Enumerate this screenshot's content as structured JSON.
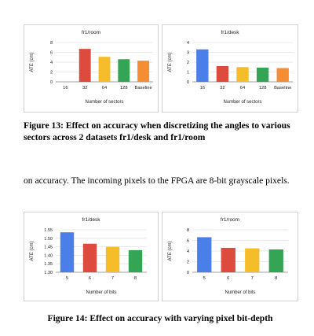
{
  "figure13": {
    "caption": "Figure 13: Effect on accuracy when discretizing the angles to various sectors across 2 datasets fr1/desk and fr1/room"
  },
  "paragraph": {
    "text": "on accuracy. The incoming pixels to the FPGA are 8-bit grayscale pixels."
  },
  "figure14": {
    "caption": "Figure 14: Effect on accuracy with varying pixel bit-depth"
  },
  "colors": {
    "blue": "#4a7ee8",
    "red": "#dc4b3d",
    "yellow": "#f5bd2a",
    "green": "#34a455",
    "orange": "#f58d33"
  },
  "chart_data": [
    {
      "type": "bar",
      "title": "fr1/room",
      "xlabel": "Number of sectors",
      "ylabel": "ATE (cm)",
      "categories": [
        "16",
        "32",
        "64",
        "128",
        "Baseline"
      ],
      "values": [
        0,
        6.7,
        5.1,
        4.6,
        4.3
      ],
      "ylim": [
        0,
        8
      ],
      "yticks": [
        "0",
        "2",
        "4",
        "6",
        "8"
      ],
      "colors": [
        "#4a7ee8",
        "#dc4b3d",
        "#f5bd2a",
        "#34a455",
        "#f58d33"
      ],
      "grid": true
    },
    {
      "type": "bar",
      "title": "fr1/desk",
      "xlabel": "Number of sectors",
      "ylabel": "ATE (cm)",
      "categories": [
        "16",
        "32",
        "64",
        "128",
        "Baseline"
      ],
      "values": [
        3.3,
        1.6,
        1.5,
        1.45,
        1.4
      ],
      "ylim": [
        0,
        4
      ],
      "yticks": [
        "0",
        "1",
        "2",
        "3",
        "4"
      ],
      "colors": [
        "#4a7ee8",
        "#dc4b3d",
        "#f5bd2a",
        "#34a455",
        "#f58d33"
      ],
      "grid": true
    },
    {
      "type": "bar",
      "title": "fr1/desk",
      "xlabel": "Number of bits",
      "ylabel": "ATE (cm)",
      "categories": [
        "5",
        "6",
        "7",
        "8"
      ],
      "values": [
        1.535,
        1.468,
        1.45,
        1.43
      ],
      "ylim": [
        1.3,
        1.55
      ],
      "yticks": [
        "1.30",
        "1.35",
        "1.40",
        "1.45",
        "1.50",
        "1.55"
      ],
      "colors": [
        "#4a7ee8",
        "#dc4b3d",
        "#f5bd2a",
        "#34a455"
      ],
      "grid": true
    },
    {
      "type": "bar",
      "title": "fr1/room",
      "xlabel": "Number of bits",
      "ylabel": "ATE (cm)",
      "categories": [
        "5",
        "6",
        "7",
        "8"
      ],
      "values": [
        6.6,
        4.6,
        4.5,
        4.3
      ],
      "ylim": [
        0,
        8
      ],
      "yticks": [
        "0",
        "2",
        "4",
        "6",
        "8"
      ],
      "colors": [
        "#4a7ee8",
        "#dc4b3d",
        "#f5bd2a",
        "#34a455"
      ],
      "grid": true
    }
  ]
}
